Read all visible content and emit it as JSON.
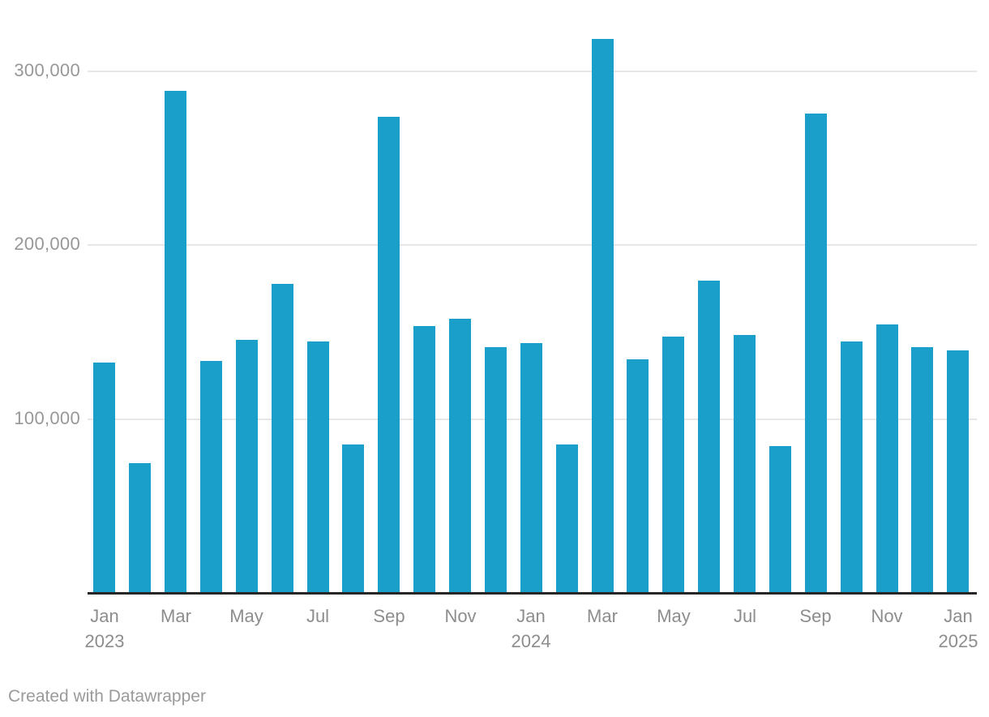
{
  "chart_data": {
    "type": "bar",
    "title": "",
    "xlabel": "",
    "ylabel": "",
    "bar_color": "#199fca",
    "grid": true,
    "legend": false,
    "ylim": [
      0,
      330000
    ],
    "yticks": [
      100000,
      200000,
      300000
    ],
    "categories": [
      "Jan 2023",
      "Feb 2023",
      "Mar 2023",
      "Apr 2023",
      "May 2023",
      "Jun 2023",
      "Jul 2023",
      "Aug 2023",
      "Sep 2023",
      "Oct 2023",
      "Nov 2023",
      "Dec 2023",
      "Jan 2024",
      "Feb 2024",
      "Mar 2024",
      "Apr 2024",
      "May 2024",
      "Jun 2024",
      "Jul 2024",
      "Aug 2024",
      "Sep 2024",
      "Oct 2024",
      "Nov 2024",
      "Dec 2024",
      "Jan 2025"
    ],
    "values": [
      132000,
      74000,
      288000,
      133000,
      145000,
      177000,
      144000,
      85000,
      273000,
      153000,
      157000,
      141000,
      143000,
      85000,
      318000,
      134000,
      147000,
      179000,
      148000,
      84000,
      275000,
      144000,
      154000,
      141000,
      139000
    ]
  },
  "chart": {
    "y_axis": {
      "ticks": [
        {
          "label": "100,000",
          "value": 100000
        },
        {
          "label": "200,000",
          "value": 200000
        },
        {
          "label": "300,000",
          "value": 300000
        }
      ]
    },
    "x_axis": {
      "tick_labels": [
        {
          "month": "Jan",
          "year": "2023",
          "index": 0
        },
        {
          "month": "Mar",
          "year": "",
          "index": 2
        },
        {
          "month": "May",
          "year": "",
          "index": 4
        },
        {
          "month": "Jul",
          "year": "",
          "index": 6
        },
        {
          "month": "Sep",
          "year": "",
          "index": 8
        },
        {
          "month": "Nov",
          "year": "",
          "index": 10
        },
        {
          "month": "Jan",
          "year": "2024",
          "index": 12
        },
        {
          "month": "Mar",
          "year": "",
          "index": 14
        },
        {
          "month": "May",
          "year": "",
          "index": 16
        },
        {
          "month": "Jul",
          "year": "",
          "index": 18
        },
        {
          "month": "Sep",
          "year": "",
          "index": 20
        },
        {
          "month": "Nov",
          "year": "",
          "index": 22
        },
        {
          "month": "Jan",
          "year": "2025",
          "index": 24
        }
      ]
    },
    "colors": {
      "bar": "#199fca",
      "gridline": "#e7e7e7",
      "baseline": "#262626",
      "axis_text": "#8d8d8d"
    }
  },
  "footer": {
    "credit": "Created with Datawrapper"
  }
}
